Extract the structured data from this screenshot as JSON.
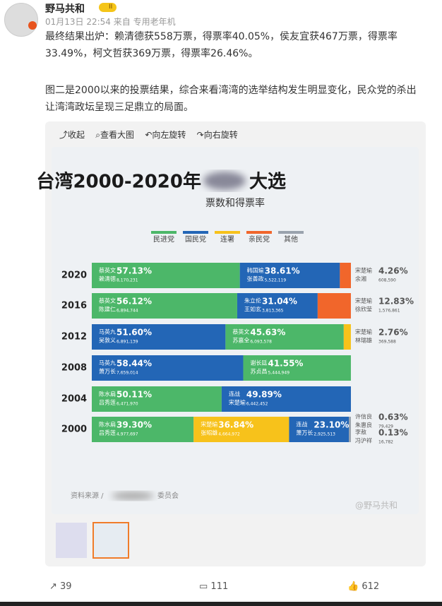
{
  "post": {
    "user": "野马共和",
    "badge": "II",
    "time": "01月13日 22:54",
    "source_prefix": "来自",
    "source": "专用老年机",
    "paragraphs": [
      "最终结果出炉：赖清德获558万票，得票率40.05%，侯友宜获467万票，得票率33.49%，柯文哲获369万票，得票率26.46%。",
      "图二是2000以来的投票结果，综合来看湾湾的选举结构发生明显变化，民众党的杀出让湾湾政坛呈现三足鼎立的局面。"
    ],
    "toolbar": [
      "收起",
      "查看大图",
      "向左旋转",
      "向右旋转"
    ],
    "counts": {
      "share": 39,
      "comment": 111,
      "like": 612
    }
  },
  "chart_data": {
    "type": "bar",
    "orientation": "horizontal",
    "stacked": true,
    "title": "台湾2000-2020年",
    "title_end": "大选",
    "subtitle": "票数和得票率",
    "legend": [
      {
        "name": "民进党",
        "color": "#4cb769"
      },
      {
        "name": "国民党",
        "color": "#2366b6"
      },
      {
        "name": "连署",
        "color": "#f7c21b"
      },
      {
        "name": "亲民党",
        "color": "#f1662b"
      },
      {
        "name": "其他",
        "color": "#9aa3ad"
      }
    ],
    "xlim": [
      0,
      100
    ],
    "categories": [
      "2020",
      "2016",
      "2012",
      "2008",
      "2004",
      "2000"
    ],
    "rows": [
      {
        "segments": [
          {
            "candidates": [
              "蔡英文",
              "赖清德"
            ],
            "value": 57.13,
            "value_label": "57.13%",
            "votes": "8,170,231",
            "color": "#4cb769"
          },
          {
            "candidates": [
              "韩国瑜",
              "张善政"
            ],
            "value": 38.61,
            "value_label": "38.61%",
            "votes": "5,522,119",
            "color": "#2366b6"
          },
          {
            "candidates": [
              "宋楚瑜",
              "余湘"
            ],
            "value": 4.26,
            "value_label": "4.26%",
            "votes": "608,590",
            "color": "#f1662b"
          }
        ]
      },
      {
        "segments": [
          {
            "candidates": [
              "蔡英文",
              "陈建仁"
            ],
            "value": 56.12,
            "value_label": "56.12%",
            "votes": "6,894,744",
            "color": "#4cb769"
          },
          {
            "candidates": [
              "朱立伦",
              "王如玄"
            ],
            "value": 31.04,
            "value_label": "31.04%",
            "votes": "3,813,365",
            "color": "#2366b6"
          },
          {
            "candidates": [
              "宋楚瑜",
              "徐欣莹"
            ],
            "value": 12.83,
            "value_label": "12.83%",
            "votes": "1,576,861",
            "color": "#f1662b"
          }
        ]
      },
      {
        "segments": [
          {
            "candidates": [
              "马英九",
              "吴敦义"
            ],
            "value": 51.6,
            "value_label": "51.60%",
            "votes": "6,891,139",
            "color": "#2366b6"
          },
          {
            "candidates": [
              "蔡英文",
              "苏嘉全"
            ],
            "value": 45.63,
            "value_label": "45.63%",
            "votes": "6,093,578",
            "color": "#4cb769"
          },
          {
            "candidates": [
              "宋楚瑜",
              "林瑞雄"
            ],
            "value": 2.76,
            "value_label": "2.76%",
            "votes": "369,588",
            "color": "#f7c21b"
          }
        ]
      },
      {
        "segments": [
          {
            "candidates": [
              "马英九",
              "萧万长"
            ],
            "value": 58.44,
            "value_label": "58.44%",
            "votes": "7,659,014",
            "color": "#2366b6"
          },
          {
            "candidates": [
              "谢长廷",
              "苏贞昌"
            ],
            "value": 41.55,
            "value_label": "41.55%",
            "votes": "5,444,949",
            "color": "#4cb769"
          }
        ]
      },
      {
        "segments": [
          {
            "candidates": [
              "陈水扁",
              "吕秀莲"
            ],
            "value": 50.11,
            "value_label": "50.11%",
            "votes": "6,471,970",
            "color": "#4cb769"
          },
          {
            "candidates": [
              "连战",
              "宋楚瑜"
            ],
            "value": 49.89,
            "value_label": "49.89%",
            "votes": "6,442,452",
            "color": "#2366b6"
          }
        ]
      },
      {
        "segments": [
          {
            "candidates": [
              "陈水扁",
              "吕秀莲"
            ],
            "value": 39.3,
            "value_label": "39.30%",
            "votes": "4,977,697",
            "color": "#4cb769"
          },
          {
            "candidates": [
              "宋楚瑜",
              "张昭雄"
            ],
            "value": 36.84,
            "value_label": "36.84%",
            "votes": "4,664,972",
            "color": "#f7c21b"
          },
          {
            "candidates": [
              "连战",
              "萧万长"
            ],
            "value": 23.1,
            "value_label": "23.10%",
            "votes": "2,925,513",
            "color": "#2366b6"
          },
          {
            "candidates": [
              "许信良",
              "朱惠良"
            ],
            "value": 0.63,
            "value_label": "0.63%",
            "votes": "79,429",
            "color": "#9aa3ad"
          },
          {
            "candidates": [
              "李敖",
              "冯沪祥"
            ],
            "value": 0.13,
            "value_label": "0.13%",
            "votes": "16,782",
            "color": "#9aa3ad"
          }
        ]
      }
    ],
    "source": "资料来源 /",
    "source_end": "委员会",
    "watermark": "@野马共和"
  }
}
